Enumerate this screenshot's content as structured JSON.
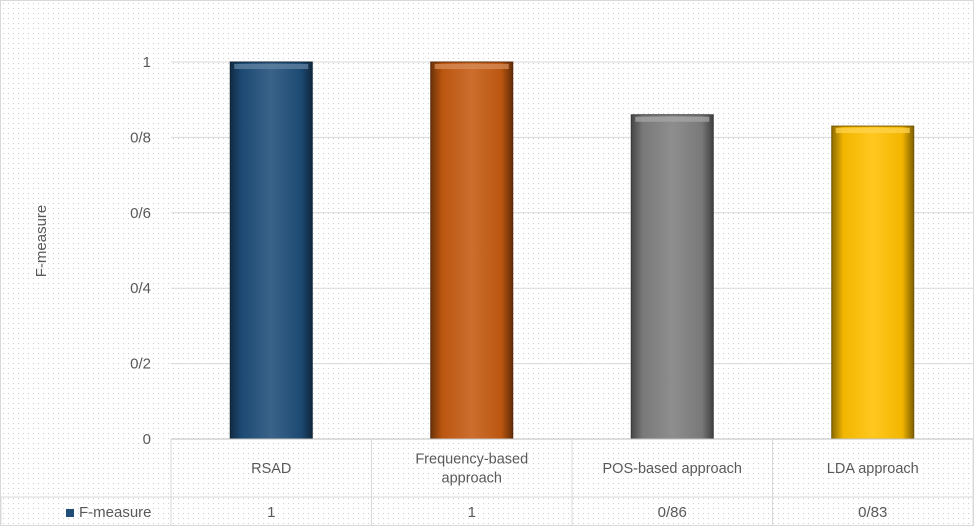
{
  "chart_data": {
    "type": "bar",
    "title": "",
    "xlabel": "",
    "ylabel": "F-measure",
    "categories": [
      "RSAD",
      "Frequency-based approach",
      "POS-based approach",
      "LDA approach"
    ],
    "category_lines": [
      [
        "RSAD"
      ],
      [
        "Frequency-based",
        "approach"
      ],
      [
        "POS-based approach"
      ],
      [
        "LDA approach"
      ]
    ],
    "series": [
      {
        "name": "F-measure",
        "values": [
          1,
          1,
          0.86,
          0.83
        ],
        "value_labels": [
          "1",
          "1",
          "0/86",
          "0/83"
        ]
      }
    ],
    "bar_colors": [
      "#1f4e79",
      "#c55a11",
      "#7f7f7f",
      "#ffc000"
    ],
    "legend_color": "#1f4e79",
    "ylim": [
      0,
      1
    ],
    "yticks": [
      0,
      0.2,
      0.4,
      0.6,
      0.8,
      1
    ],
    "ytick_labels": [
      "0",
      "0/2",
      "0/4",
      "0/6",
      "0/8",
      "1"
    ],
    "grid": true,
    "data_table": true
  }
}
